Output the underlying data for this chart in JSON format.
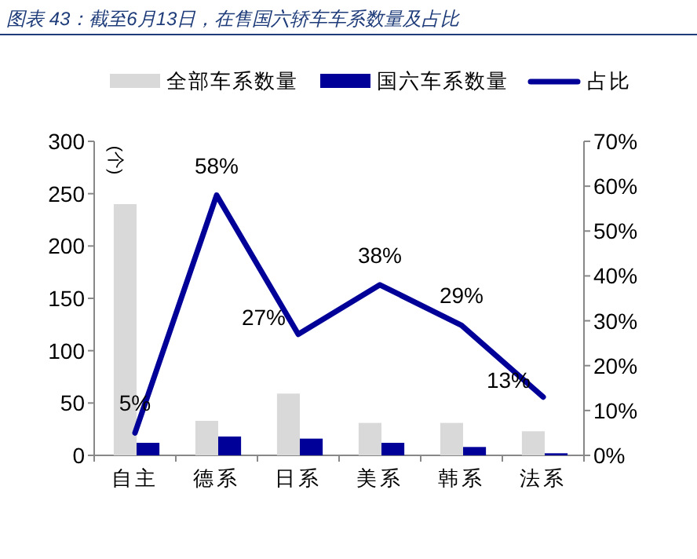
{
  "chart_data": {
    "type": "bar",
    "title": "图表 43：截至6月13日，在售国六轿车车系数量及占比",
    "ylabel": "(个)",
    "categories": [
      "自主",
      "德系",
      "日系",
      "美系",
      "韩系",
      "法系"
    ],
    "series": [
      {
        "name": "全部车系数量",
        "color": "#d9d9d9",
        "values": [
          240,
          33,
          59,
          31,
          31,
          23
        ]
      },
      {
        "name": "国六车系数量",
        "color": "#000099",
        "values": [
          12,
          18,
          16,
          12,
          8,
          2
        ]
      },
      {
        "name": "占比",
        "type": "line",
        "axis": "y2",
        "color": "#000099",
        "values": [
          5,
          58,
          27,
          38,
          29,
          13
        ],
        "value_labels": [
          "5%",
          "58%",
          "27%",
          "38%",
          "29%",
          "13%"
        ]
      }
    ],
    "ylim": [
      0,
      300
    ],
    "yticks": [
      0,
      50,
      100,
      150,
      200,
      250,
      300
    ],
    "y2lim": [
      0,
      70
    ],
    "y2ticks": [
      {
        "value": 0,
        "label": "0%"
      },
      {
        "value": 10,
        "label": "10%"
      },
      {
        "value": 20,
        "label": "20%"
      },
      {
        "value": 30,
        "label": "30%"
      },
      {
        "value": 40,
        "label": "40%"
      },
      {
        "value": 50,
        "label": "50%"
      },
      {
        "value": 60,
        "label": "60%"
      },
      {
        "value": 70,
        "label": "70%"
      }
    ],
    "legend": "top",
    "grid": false
  }
}
